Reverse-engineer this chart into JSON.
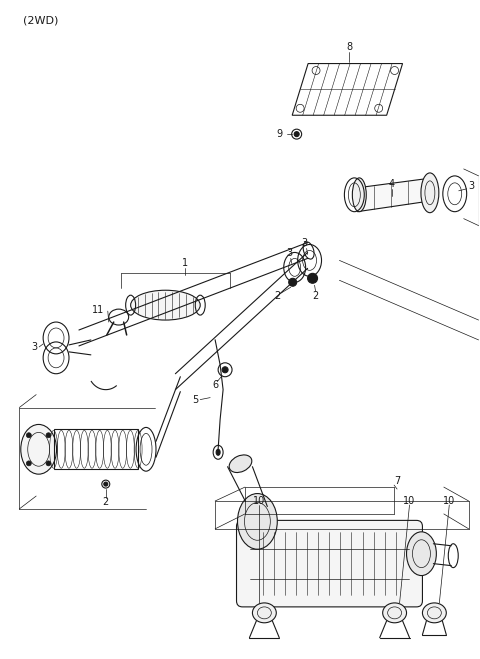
{
  "title": "(2WD)",
  "bg": "#ffffff",
  "lc": "#1a1a1a",
  "fig_w": 4.8,
  "fig_h": 6.59,
  "dpi": 100
}
